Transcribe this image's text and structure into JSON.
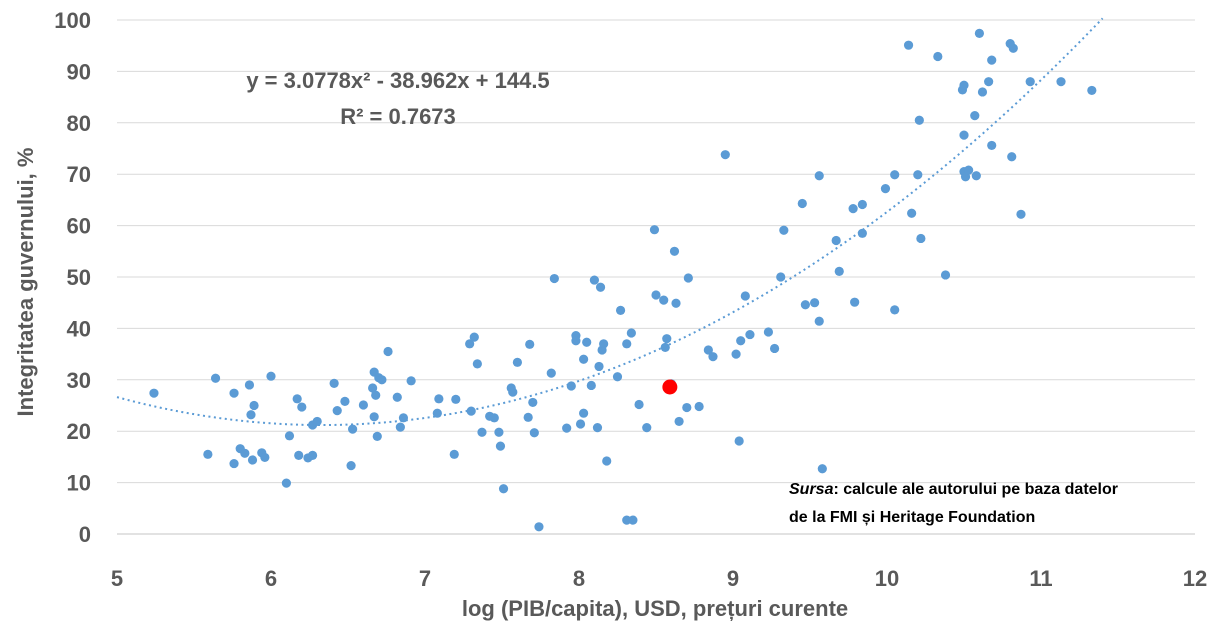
{
  "chart_data": {
    "type": "scatter",
    "xlabel": "log (PIB/capita), USD, prețuri curente",
    "ylabel": "Integritatea guvernului, %",
    "xlim": [
      5,
      12
    ],
    "ylim": [
      0,
      100
    ],
    "xticks": [
      "5",
      "6",
      "7",
      "8",
      "9",
      "10",
      "11",
      "12"
    ],
    "yticks": [
      "0",
      "10",
      "20",
      "30",
      "40",
      "50",
      "60",
      "70",
      "80",
      "90",
      "100"
    ],
    "grid": "horizontal",
    "trendline": {
      "type": "polynomial",
      "a": 3.0778,
      "b": -38.962,
      "c": 144.5,
      "equation": "y = 3.0778x² - 38.962x + 144.5",
      "r_squared": "R² = 0.7673",
      "color": "#5B9BD5"
    },
    "source": {
      "label": "Sursa",
      "line1": ": calcule ale autorului pe baza datelor",
      "line2": "de la FMI și Heritage Foundation"
    },
    "colors": {
      "points": "#5B9BD5",
      "highlight": "#FF0000"
    },
    "highlight_point": [
      8.59,
      28.6
    ],
    "points": [
      [
        5.24,
        27.4
      ],
      [
        5.59,
        15.5
      ],
      [
        5.64,
        30.3
      ],
      [
        5.76,
        27.4
      ],
      [
        5.76,
        13.7
      ],
      [
        5.8,
        16.6
      ],
      [
        5.83,
        15.7
      ],
      [
        5.86,
        29.0
      ],
      [
        5.87,
        23.2
      ],
      [
        5.88,
        14.4
      ],
      [
        5.89,
        25.0
      ],
      [
        5.94,
        15.8
      ],
      [
        5.96,
        14.9
      ],
      [
        6.0,
        30.7
      ],
      [
        6.1,
        9.9
      ],
      [
        6.12,
        19.1
      ],
      [
        6.17,
        26.3
      ],
      [
        6.18,
        15.3
      ],
      [
        6.2,
        24.7
      ],
      [
        6.24,
        14.8
      ],
      [
        6.27,
        15.3
      ],
      [
        6.27,
        21.2
      ],
      [
        6.3,
        21.9
      ],
      [
        6.41,
        29.3
      ],
      [
        6.43,
        24.0
      ],
      [
        6.48,
        25.8
      ],
      [
        6.52,
        13.3
      ],
      [
        6.53,
        20.4
      ],
      [
        6.6,
        25.1
      ],
      [
        6.66,
        28.4
      ],
      [
        6.67,
        22.8
      ],
      [
        6.67,
        31.5
      ],
      [
        6.68,
        27.0
      ],
      [
        6.69,
        19.0
      ],
      [
        6.7,
        30.4
      ],
      [
        6.72,
        30.0
      ],
      [
        6.76,
        35.5
      ],
      [
        6.82,
        26.6
      ],
      [
        6.84,
        20.8
      ],
      [
        6.86,
        22.6
      ],
      [
        6.91,
        29.8
      ],
      [
        7.08,
        23.5
      ],
      [
        7.09,
        26.3
      ],
      [
        7.19,
        15.5
      ],
      [
        7.2,
        26.2
      ],
      [
        7.29,
        37.0
      ],
      [
        7.3,
        23.9
      ],
      [
        7.32,
        38.3
      ],
      [
        7.34,
        33.1
      ],
      [
        7.37,
        19.8
      ],
      [
        7.42,
        22.9
      ],
      [
        7.45,
        22.6
      ],
      [
        7.48,
        19.8
      ],
      [
        7.49,
        17.1
      ],
      [
        7.51,
        8.8
      ],
      [
        7.56,
        28.4
      ],
      [
        7.57,
        27.6
      ],
      [
        7.6,
        33.4
      ],
      [
        7.67,
        22.7
      ],
      [
        7.68,
        36.9
      ],
      [
        7.7,
        25.6
      ],
      [
        7.71,
        19.7
      ],
      [
        7.74,
        1.4
      ],
      [
        7.82,
        31.3
      ],
      [
        7.84,
        49.7
      ],
      [
        7.92,
        20.6
      ],
      [
        7.95,
        28.8
      ],
      [
        7.98,
        38.6
      ],
      [
        7.98,
        37.6
      ],
      [
        8.01,
        21.4
      ],
      [
        8.03,
        23.5
      ],
      [
        8.03,
        34.0
      ],
      [
        8.05,
        37.3
      ],
      [
        8.08,
        28.9
      ],
      [
        8.1,
        49.4
      ],
      [
        8.12,
        20.7
      ],
      [
        8.13,
        32.6
      ],
      [
        8.14,
        48.0
      ],
      [
        8.15,
        35.8
      ],
      [
        8.16,
        37.0
      ],
      [
        8.18,
        14.2
      ],
      [
        8.25,
        30.6
      ],
      [
        8.27,
        43.5
      ],
      [
        8.31,
        2.7
      ],
      [
        8.31,
        37.0
      ],
      [
        8.34,
        39.1
      ],
      [
        8.35,
        2.7
      ],
      [
        8.39,
        25.2
      ],
      [
        8.44,
        20.7
      ],
      [
        8.49,
        59.2
      ],
      [
        8.5,
        46.5
      ],
      [
        8.55,
        45.5
      ],
      [
        8.56,
        36.3
      ],
      [
        8.57,
        38.0
      ],
      [
        8.6,
        29.2
      ],
      [
        8.62,
        55.0
      ],
      [
        8.63,
        44.9
      ],
      [
        8.65,
        21.9
      ],
      [
        8.7,
        24.6
      ],
      [
        8.71,
        49.8
      ],
      [
        8.78,
        24.8
      ],
      [
        8.84,
        35.8
      ],
      [
        8.87,
        34.5
      ],
      [
        8.95,
        73.8
      ],
      [
        9.02,
        35.0
      ],
      [
        9.04,
        18.1
      ],
      [
        9.05,
        37.6
      ],
      [
        9.08,
        46.3
      ],
      [
        9.11,
        38.8
      ],
      [
        9.23,
        39.3
      ],
      [
        9.27,
        36.1
      ],
      [
        9.31,
        50.0
      ],
      [
        9.33,
        59.1
      ],
      [
        9.45,
        64.3
      ],
      [
        9.47,
        44.6
      ],
      [
        9.53,
        45.0
      ],
      [
        9.56,
        41.4
      ],
      [
        9.56,
        69.7
      ],
      [
        9.58,
        12.7
      ],
      [
        9.67,
        57.1
      ],
      [
        9.69,
        51.1
      ],
      [
        9.78,
        63.3
      ],
      [
        9.79,
        45.1
      ],
      [
        9.84,
        58.5
      ],
      [
        9.84,
        64.1
      ],
      [
        9.99,
        67.2
      ],
      [
        10.05,
        43.6
      ],
      [
        10.05,
        69.9
      ],
      [
        10.14,
        95.1
      ],
      [
        10.16,
        62.4
      ],
      [
        10.2,
        69.9
      ],
      [
        10.21,
        80.5
      ],
      [
        10.22,
        57.5
      ],
      [
        10.33,
        92.9
      ],
      [
        10.38,
        50.4
      ],
      [
        10.49,
        86.4
      ],
      [
        10.5,
        77.6
      ],
      [
        10.5,
        70.5
      ],
      [
        10.5,
        87.3
      ],
      [
        10.51,
        69.5
      ],
      [
        10.53,
        70.8
      ],
      [
        10.57,
        81.4
      ],
      [
        10.58,
        69.7
      ],
      [
        10.6,
        97.4
      ],
      [
        10.62,
        86.0
      ],
      [
        10.66,
        88.0
      ],
      [
        10.68,
        75.6
      ],
      [
        10.68,
        92.2
      ],
      [
        10.8,
        95.4
      ],
      [
        10.81,
        73.4
      ],
      [
        10.82,
        94.5
      ],
      [
        10.87,
        62.2
      ],
      [
        10.93,
        88.0
      ],
      [
        11.13,
        88.0
      ],
      [
        11.33,
        86.3
      ]
    ]
  }
}
